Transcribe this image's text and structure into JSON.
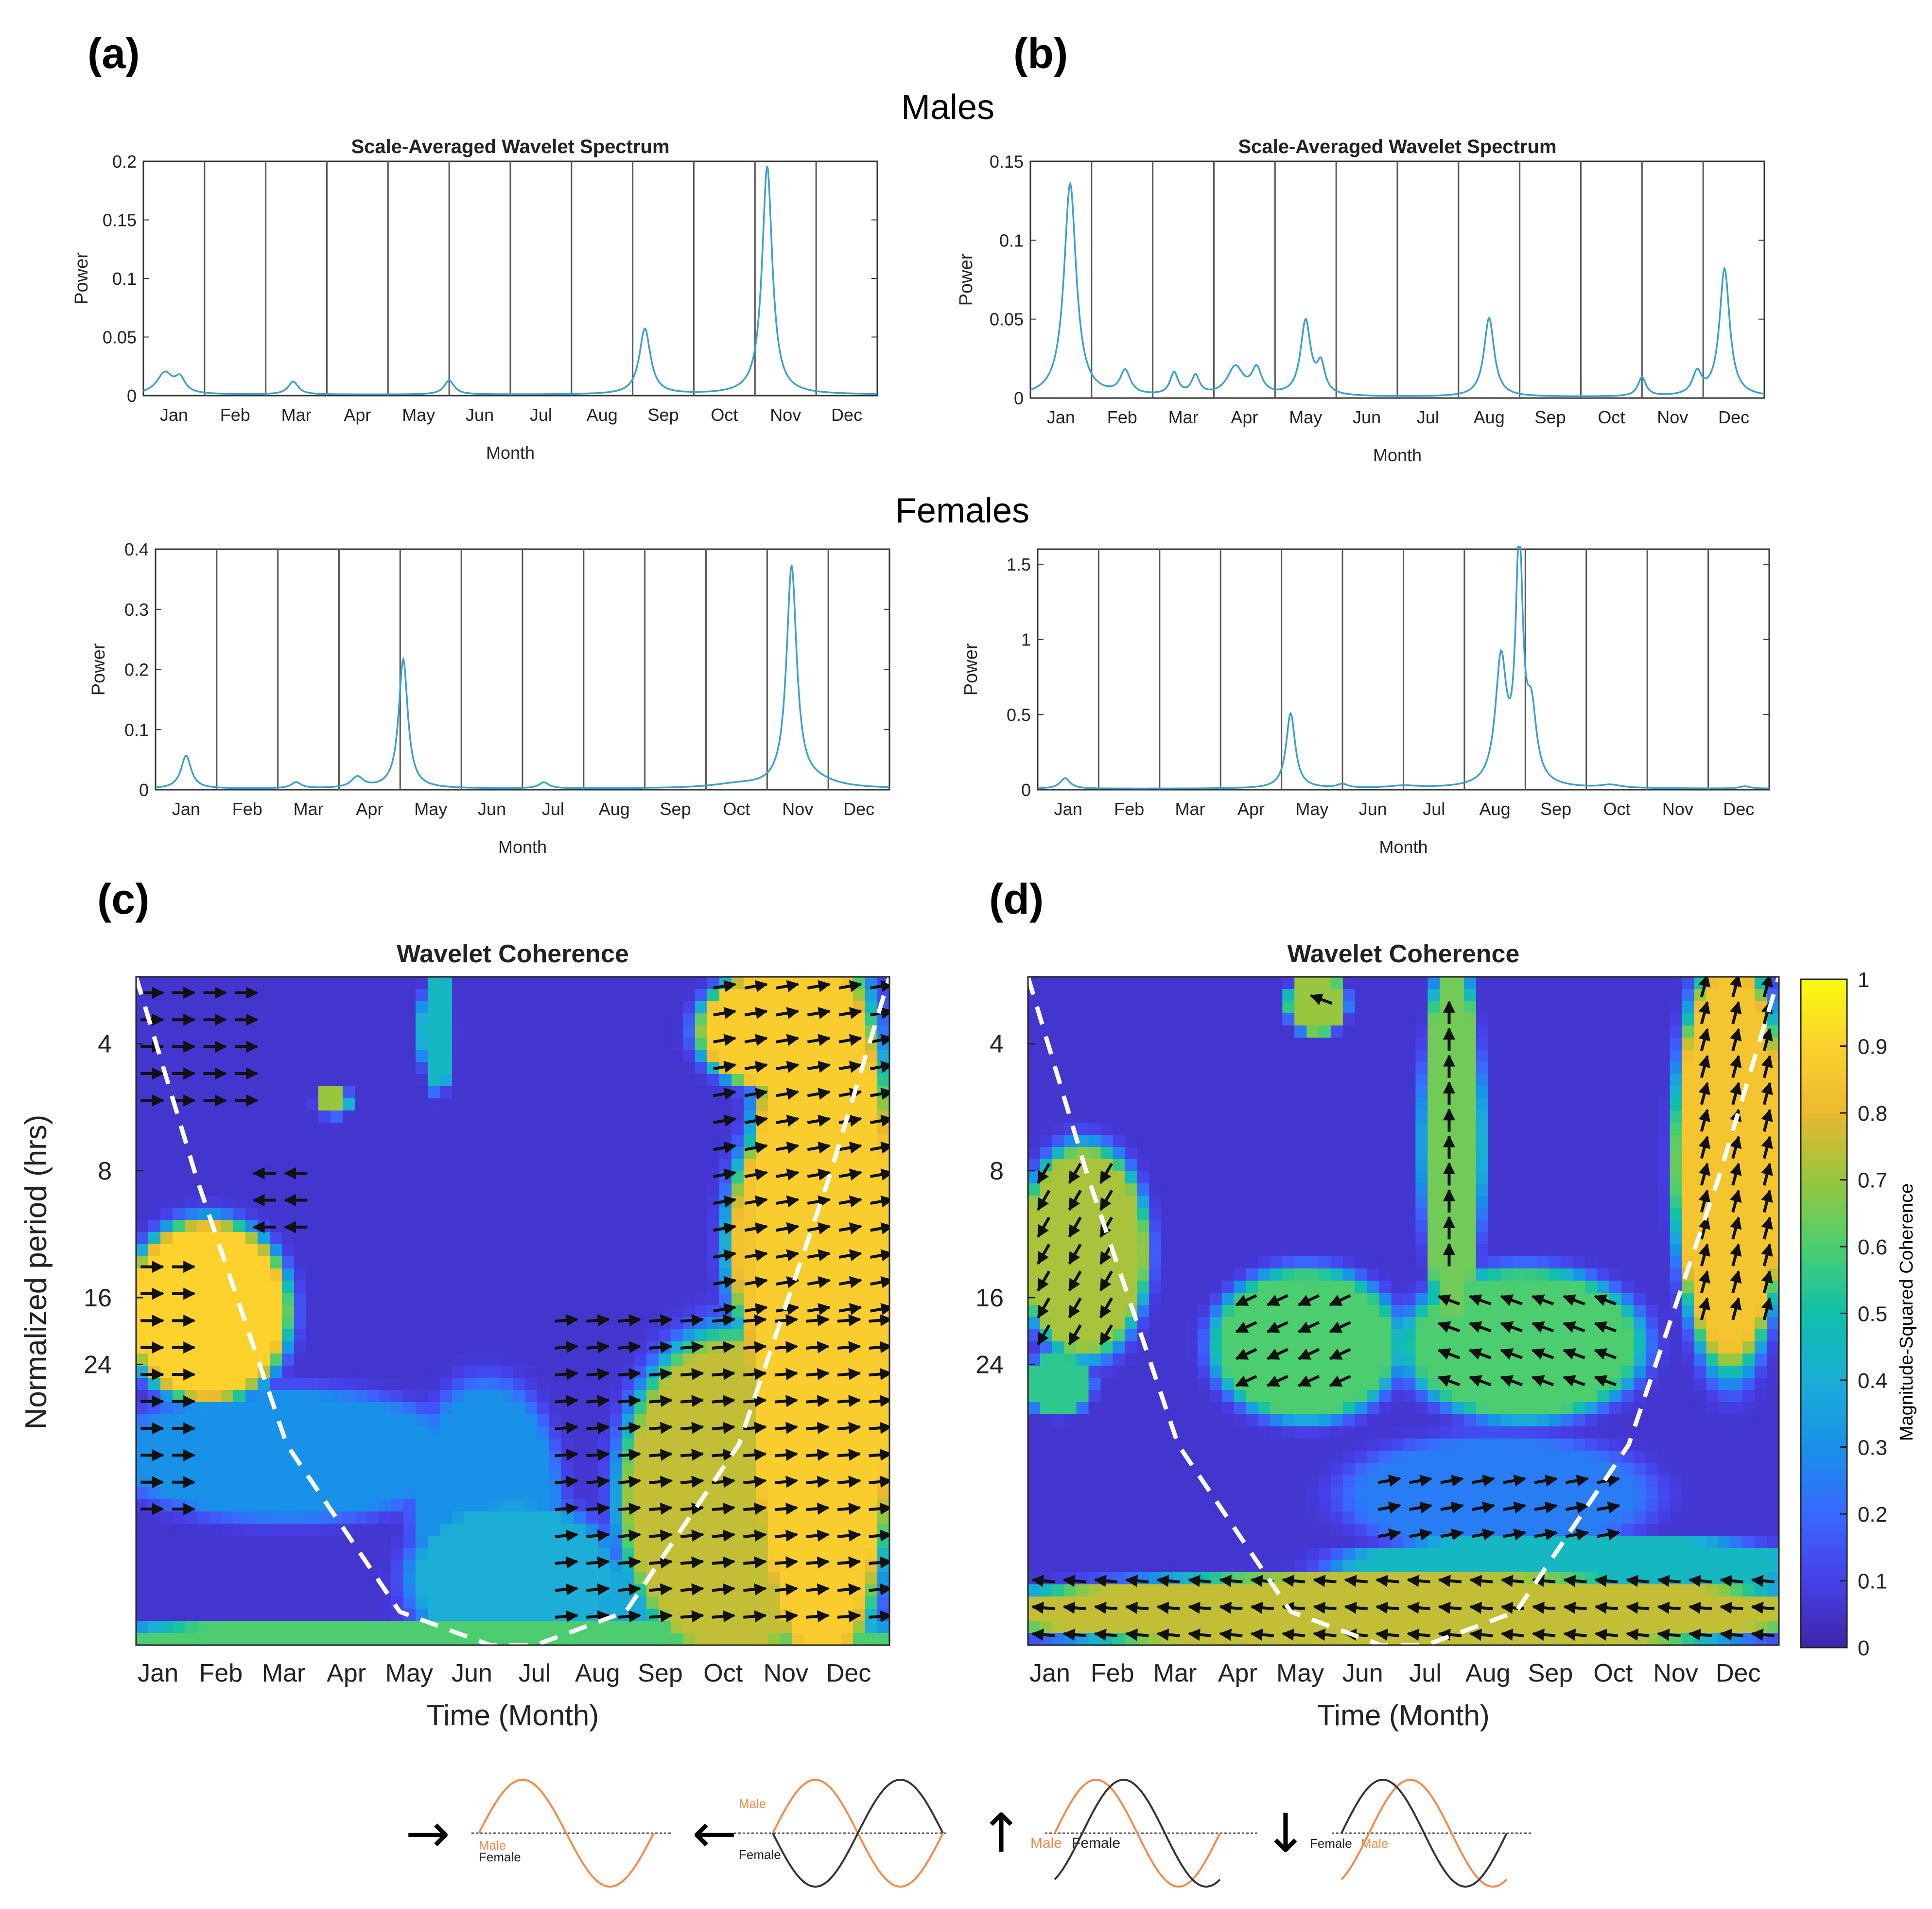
{
  "panel_labels": [
    "(a)",
    "(b)",
    "(c)",
    "(d)"
  ],
  "group_titles": {
    "males": "Males",
    "females": "Females"
  },
  "colors": {
    "line": "#3a9fd0",
    "gridline": "#555555",
    "arrow": "#111111",
    "male_wave": "#f5894a",
    "female_wave": "#333333",
    "coi": "#ffffff"
  },
  "legend": {
    "colorbar_label": "Magnitude-Squared Coherence",
    "colorbar_ticks": [
      "0",
      "0.1",
      "0.2",
      "0.3",
      "0.4",
      "0.5",
      "0.6",
      "0.7",
      "0.8",
      "0.9",
      "1"
    ],
    "phase_glyphs": [
      "→",
      "←",
      "↑",
      "↓"
    ],
    "male_label": "Male",
    "female_label": "Female"
  },
  "chart_data": [
    {
      "id": "a-males",
      "type": "line",
      "title": "Scale-Averaged Wavelet Spectrum",
      "xlabel": "Month",
      "ylabel": "Power",
      "categories": [
        "Jan",
        "Feb",
        "Mar",
        "Apr",
        "May",
        "Jun",
        "Jul",
        "Aug",
        "Sep",
        "Oct",
        "Nov",
        "Dec"
      ],
      "yticks": [
        "0",
        "0.05",
        "0.1",
        "0.15",
        "0.2"
      ],
      "ylim": [
        0,
        0.2
      ],
      "xlim": [
        0,
        12
      ],
      "series": [
        {
          "name": "Power",
          "peaks": [
            [
              0.35,
              0.018,
              0.16
            ],
            [
              0.6,
              0.012,
              0.1
            ],
            [
              2.45,
              0.011,
              0.1
            ],
            [
              5.0,
              0.012,
              0.1
            ],
            [
              8.2,
              0.056,
              0.11
            ],
            [
              10.2,
              0.195,
              0.1
            ]
          ]
        }
      ]
    },
    {
      "id": "b-males",
      "type": "line",
      "title": "Scale-Averaged Wavelet Spectrum",
      "xlabel": "Month",
      "ylabel": "Power",
      "categories": [
        "Jan",
        "Feb",
        "Mar",
        "Apr",
        "May",
        "Jun",
        "Jul",
        "Aug",
        "Sep",
        "Oct",
        "Nov",
        "Dec"
      ],
      "yticks": [
        "0",
        "0.05",
        "0.1",
        "0.15"
      ],
      "ylim": [
        0,
        0.15
      ],
      "xlim": [
        0,
        12
      ],
      "series": [
        {
          "name": "Power",
          "peaks": [
            [
              0.65,
              0.135,
              0.12
            ],
            [
              1.55,
              0.015,
              0.1
            ],
            [
              2.35,
              0.014,
              0.08
            ],
            [
              2.7,
              0.012,
              0.08
            ],
            [
              3.35,
              0.018,
              0.16
            ],
            [
              3.7,
              0.016,
              0.1
            ],
            [
              4.5,
              0.047,
              0.1
            ],
            [
              4.75,
              0.018,
              0.08
            ],
            [
              7.5,
              0.05,
              0.1
            ],
            [
              10.0,
              0.012,
              0.08
            ],
            [
              10.9,
              0.014,
              0.09
            ],
            [
              11.35,
              0.081,
              0.1
            ]
          ]
        }
      ]
    },
    {
      "id": "a-females",
      "type": "line",
      "title": "",
      "xlabel": "Month",
      "ylabel": "Power",
      "categories": [
        "Jan",
        "Feb",
        "Mar",
        "Apr",
        "May",
        "Jun",
        "Jul",
        "Aug",
        "Sep",
        "Oct",
        "Nov",
        "Dec"
      ],
      "yticks": [
        "0",
        "0.1",
        "0.2",
        "0.3",
        "0.4"
      ],
      "ylim": [
        0,
        0.4
      ],
      "xlim": [
        0,
        12
      ],
      "series": [
        {
          "name": "Power",
          "peaks": [
            [
              0.5,
              0.055,
              0.1
            ],
            [
              2.3,
              0.01,
              0.1
            ],
            [
              3.3,
              0.018,
              0.12
            ],
            [
              4.05,
              0.215,
              0.09
            ],
            [
              6.35,
              0.01,
              0.1
            ],
            [
              9.5,
              0.006,
              0.5
            ],
            [
              10.4,
              0.365,
              0.1
            ],
            [
              10.8,
              0.01,
              0.4
            ]
          ]
        }
      ]
    },
    {
      "id": "b-females",
      "type": "line",
      "title": "",
      "xlabel": "Month",
      "ylabel": "Power",
      "categories": [
        "Jan",
        "Feb",
        "Mar",
        "Apr",
        "May",
        "Jun",
        "Jul",
        "Aug",
        "Sep",
        "Oct",
        "Nov",
        "Dec"
      ],
      "yticks": [
        "0",
        "0.5",
        "1",
        "1.5"
      ],
      "ylim": [
        0,
        1.6
      ],
      "xlim": [
        0,
        12
      ],
      "series": [
        {
          "name": "Power",
          "peaks": [
            [
              0.45,
              0.07,
              0.1
            ],
            [
              4.15,
              0.5,
              0.09
            ],
            [
              5.0,
              0.025,
              0.1
            ],
            [
              6.0,
              0.015,
              0.3
            ],
            [
              7.6,
              0.82,
              0.11
            ],
            [
              7.9,
              1.58,
              0.07
            ],
            [
              8.1,
              0.45,
              0.1
            ],
            [
              9.4,
              0.02,
              0.2
            ],
            [
              11.6,
              0.015,
              0.1
            ]
          ]
        }
      ]
    },
    {
      "id": "c",
      "type": "heatmap",
      "title": "Wavelet Coherence",
      "xlabel": "Time (Month)",
      "ylabel": "Normalized period (hrs)",
      "categories": [
        "Jan",
        "Feb",
        "Mar",
        "Apr",
        "May",
        "Jun",
        "Jul",
        "Aug",
        "Sep",
        "Oct",
        "Nov",
        "Dec"
      ],
      "yticks": [
        "4",
        "8",
        "16",
        "24"
      ],
      "ytick_positions": [
        0.1,
        0.29,
        0.48,
        0.58
      ],
      "clim": [
        0,
        1
      ],
      "background_value": 0.06,
      "blobs": [
        [
          0.0,
          0.38,
          0.19,
          0.62,
          0.9,
          2.0
        ],
        [
          0.4,
          0.3,
          0.12,
          0.07,
          0.7,
          2.0
        ],
        [
          0.6,
          0.0,
          0.2,
          0.16,
          0.45,
          2.0
        ],
        [
          0.0,
          0.63,
          0.4,
          0.8,
          0.3,
          1.5
        ],
        [
          0.38,
          0.63,
          0.55,
          0.94,
          0.3,
          1.5
        ],
        [
          0.55,
          0.88,
          0.9,
          1.0,
          0.38,
          1.2
        ],
        [
          0.38,
          0.8,
          0.62,
          1.0,
          0.4,
          1.5
        ],
        [
          0.66,
          0.56,
          0.92,
          1.0,
          0.75,
          2.0
        ],
        [
          0.82,
          0.0,
          1.0,
          1.0,
          0.88,
          2.0
        ],
        [
          0.76,
          0.0,
          0.96,
          0.16,
          0.88,
          2.0
        ],
        [
          0.8,
          0.2,
          1.0,
          0.6,
          0.85,
          2.0
        ],
        [
          0.0,
          0.97,
          1.0,
          1.0,
          0.6,
          2.0
        ]
      ],
      "arrow_regions": [
        [
          0.0,
          0.01,
          0.17,
          0.22,
          0.0
        ],
        [
          0.0,
          0.42,
          0.1,
          0.82,
          0.0
        ],
        [
          0.15,
          0.28,
          0.22,
          0.38,
          180.0
        ],
        [
          0.55,
          0.5,
          1.0,
          0.98,
          5.0
        ],
        [
          0.76,
          0.0,
          1.0,
          0.5,
          10.0
        ]
      ],
      "coi": [
        [
          0.0,
          0.0
        ],
        [
          0.08,
          0.3
        ],
        [
          0.2,
          0.7
        ],
        [
          0.35,
          0.95
        ],
        [
          0.47,
          1.0
        ],
        [
          0.53,
          1.0
        ],
        [
          0.65,
          0.95
        ],
        [
          0.8,
          0.7
        ],
        [
          0.92,
          0.3
        ],
        [
          1.0,
          0.0
        ]
      ]
    },
    {
      "id": "d",
      "type": "heatmap",
      "title": "Wavelet Coherence",
      "xlabel": "Time (Month)",
      "ylabel": "",
      "categories": [
        "Jan",
        "Feb",
        "Mar",
        "Apr",
        "May",
        "Jun",
        "Jul",
        "Aug",
        "Sep",
        "Oct",
        "Nov",
        "Dec"
      ],
      "yticks": [
        "4",
        "8",
        "16",
        "24"
      ],
      "ytick_positions": [
        0.1,
        0.29,
        0.48,
        0.58
      ],
      "clim": [
        0,
        1
      ],
      "background_value": 0.06,
      "blobs": [
        [
          0.0,
          0.27,
          0.15,
          0.55,
          0.72,
          2.0
        ],
        [
          0.26,
          0.45,
          0.48,
          0.65,
          0.6,
          2.0
        ],
        [
          0.52,
          0.45,
          0.8,
          0.65,
          0.6,
          2.0
        ],
        [
          0.53,
          0.0,
          0.6,
          0.5,
          0.65,
          2.0
        ],
        [
          0.35,
          0.0,
          0.42,
          0.08,
          0.7,
          2.0
        ],
        [
          0.87,
          0.0,
          1.0,
          0.55,
          0.85,
          2.0
        ],
        [
          0.45,
          0.7,
          0.8,
          0.85,
          0.25,
          1.2
        ],
        [
          0.45,
          0.84,
          1.0,
          0.92,
          0.45,
          2.0
        ],
        [
          0.0,
          0.9,
          1.0,
          1.0,
          0.75,
          2.0
        ],
        [
          0.0,
          0.57,
          0.08,
          0.65,
          0.55,
          2.0
        ]
      ],
      "arrow_regions": [
        [
          0.0,
          0.28,
          0.14,
          0.55,
          240.0
        ],
        [
          0.27,
          0.47,
          0.45,
          0.64,
          205.0
        ],
        [
          0.54,
          0.47,
          0.78,
          0.64,
          160.0
        ],
        [
          0.54,
          0.04,
          0.6,
          0.45,
          90.0
        ],
        [
          0.37,
          0.02,
          0.42,
          0.06,
          160.0
        ],
        [
          0.88,
          0.0,
          0.99,
          0.52,
          75.0
        ],
        [
          0.46,
          0.74,
          0.78,
          0.86,
          10.0
        ],
        [
          0.0,
          0.89,
          1.0,
          0.99,
          175.0
        ]
      ],
      "coi": [
        [
          0.0,
          0.0
        ],
        [
          0.08,
          0.3
        ],
        [
          0.2,
          0.7
        ],
        [
          0.35,
          0.95
        ],
        [
          0.47,
          1.0
        ],
        [
          0.53,
          1.0
        ],
        [
          0.65,
          0.95
        ],
        [
          0.8,
          0.7
        ],
        [
          0.92,
          0.3
        ],
        [
          1.0,
          0.0
        ]
      ]
    }
  ]
}
